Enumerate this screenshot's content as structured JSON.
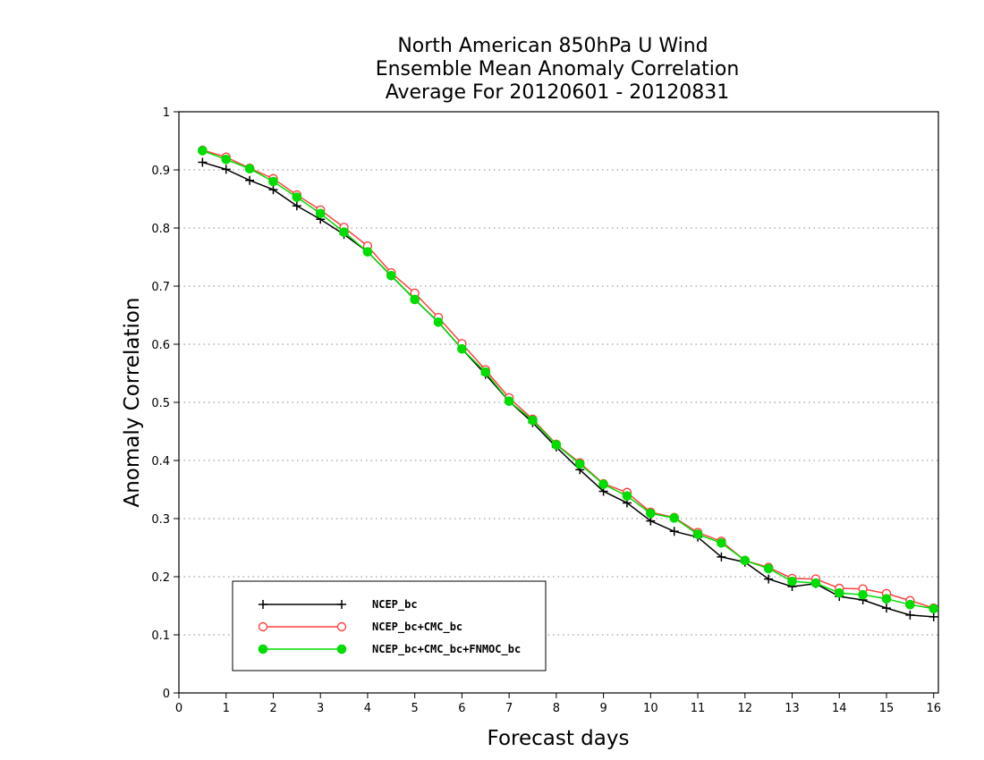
{
  "chart_data": {
    "type": "line",
    "title": [
      "North American 850hPa U Wind",
      "Ensemble Mean Anomaly Correlation",
      "Average For 20120601 - 20120831"
    ],
    "xlabel": "Forecast days",
    "ylabel": "Anomaly Correlation",
    "xlim": [
      0,
      16.1
    ],
    "ylim": [
      0,
      1
    ],
    "xticks": [
      0,
      1,
      2,
      3,
      4,
      5,
      6,
      7,
      8,
      9,
      10,
      11,
      12,
      13,
      14,
      15,
      16
    ],
    "xtick_labels": [
      "0",
      "1",
      "2",
      "3",
      "4",
      "5",
      "6",
      "7",
      "8",
      "9",
      "10",
      "11",
      "12",
      "13",
      "14",
      "15",
      "16"
    ],
    "yticks": [
      0,
      0.1,
      0.2,
      0.3,
      0.4,
      0.5,
      0.6,
      0.7,
      0.8,
      0.9,
      1
    ],
    "ytick_labels": [
      "0",
      "0.1",
      "0.2",
      "0.3",
      "0.4",
      "0.5",
      "0.6",
      "0.7",
      "0.8",
      "0.9",
      "1"
    ],
    "grid": "horizontal dotted",
    "legend_position": "bottom-left",
    "x": [
      0.5,
      1,
      1.5,
      2,
      2.5,
      3,
      3.5,
      4,
      4.5,
      5,
      5.5,
      6,
      6.5,
      7,
      7.5,
      8,
      8.5,
      9,
      9.5,
      10,
      10.5,
      11,
      11.5,
      12,
      12.5,
      13,
      13.5,
      14,
      14.5,
      15,
      15.5,
      16
    ],
    "series": [
      {
        "name": "NCEP_bc",
        "color": "#000000",
        "marker": "plus",
        "values": [
          0.913,
          0.901,
          0.882,
          0.866,
          0.838,
          0.815,
          0.789,
          0.759,
          0.718,
          0.677,
          0.638,
          0.592,
          0.548,
          0.502,
          0.465,
          0.423,
          0.384,
          0.347,
          0.327,
          0.296,
          0.278,
          0.268,
          0.234,
          0.225,
          0.196,
          0.183,
          0.188,
          0.166,
          0.16,
          0.146,
          0.134,
          0.131
        ]
      },
      {
        "name": "NCEP_bc+CMC_bc",
        "color": "#ff4040",
        "marker": "open-circle",
        "values": [
          0.934,
          0.922,
          0.903,
          0.885,
          0.857,
          0.831,
          0.801,
          0.769,
          0.723,
          0.688,
          0.646,
          0.601,
          0.556,
          0.508,
          0.471,
          0.428,
          0.396,
          0.36,
          0.345,
          0.311,
          0.302,
          0.276,
          0.261,
          0.228,
          0.216,
          0.197,
          0.196,
          0.18,
          0.179,
          0.171,
          0.159,
          0.146
        ]
      },
      {
        "name": "NCEP_bc+CMC_bc+FNMOC_bc",
        "color": "#00dd00",
        "marker": "filled-circle",
        "values": [
          0.933,
          0.918,
          0.902,
          0.88,
          0.853,
          0.825,
          0.793,
          0.759,
          0.718,
          0.677,
          0.638,
          0.592,
          0.552,
          0.502,
          0.469,
          0.427,
          0.394,
          0.359,
          0.339,
          0.309,
          0.301,
          0.273,
          0.258,
          0.228,
          0.214,
          0.192,
          0.189,
          0.172,
          0.169,
          0.162,
          0.152,
          0.145
        ]
      }
    ]
  }
}
